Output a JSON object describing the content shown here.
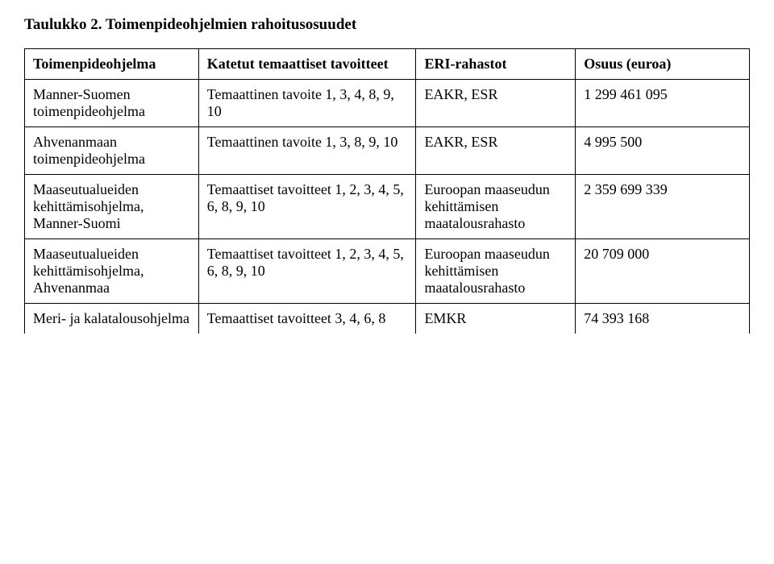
{
  "title": "Taulukko 2. Toimenpideohjelmien rahoitusosuudet",
  "columns": [
    "Toimenpideohjelma",
    "Katetut temaattiset tavoitteet",
    "ERI-rahastot",
    "Osuus (euroa)"
  ],
  "rows": [
    {
      "c0": "Manner-Suomen toimenpideohjelma",
      "c1": "Temaattinen tavoite 1, 3, 4, 8, 9, 10",
      "c2": "EAKR, ESR",
      "c3": "1 299 461 095"
    },
    {
      "c0": "Ahvenanmaan toimenpideohjelma",
      "c1": "Temaattinen tavoite 1, 3, 8, 9, 10",
      "c2": "EAKR, ESR",
      "c3": "4 995 500"
    },
    {
      "c0": "Maaseutualueiden kehittämisohjelma, Manner-Suomi",
      "c1": "Temaattiset tavoitteet 1, 2, 3, 4, 5, 6, 8, 9, 10",
      "c2": "Euroopan maaseudun kehittämisen maatalousrahasto",
      "c3": "2 359 699 339"
    },
    {
      "c0": "Maaseutualueiden kehittämisohjelma, Ahvenanmaa",
      "c1": "Temaattiset tavoitteet 1, 2, 3, 4, 5, 6, 8, 9, 10",
      "c2": "Euroopan maaseudun kehittämisen maatalousrahasto",
      "c3": "20 709 000"
    },
    {
      "c0": "Meri- ja kalatalousohjelma",
      "c1": "Temaattiset tavoitteet 3, 4, 6, 8",
      "c2": "EMKR",
      "c3": "74 393 168"
    }
  ],
  "style": {
    "font_family": "Times New Roman",
    "title_fontsize_pt": 14,
    "cell_fontsize_pt": 13,
    "border_color": "#000000",
    "background_color": "#ffffff",
    "text_color": "#000000",
    "col_widths_pct": [
      24,
      30,
      22,
      24
    ]
  }
}
